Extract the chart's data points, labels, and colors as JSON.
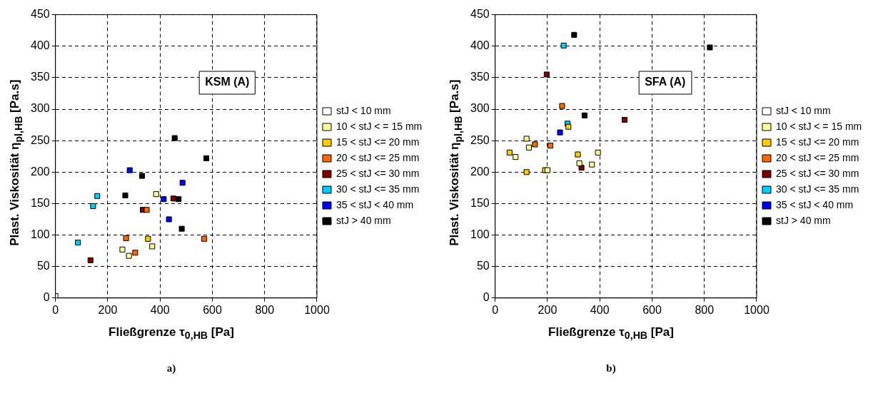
{
  "chart_data": [
    {
      "type": "scatter",
      "xlabel": "Fließgrenze τ$_{0,HB}$ [Pa]",
      "ylabel": "Plast. Viskosität η$_{pl,HB}$ [Pa.s]",
      "annotations": [
        "KSM (A)",
        "a)"
      ],
      "xlim": [
        0,
        1000
      ],
      "xticks": [
        0,
        200,
        400,
        600,
        800,
        1000
      ],
      "ylim": [
        0,
        450
      ],
      "yticks": [
        0,
        50,
        100,
        150,
        200,
        250,
        300,
        350,
        400,
        450
      ],
      "grid": true,
      "legend": "right",
      "marker": "square",
      "series": [
        {
          "name": "stJ < 10 mm",
          "color": "#ffffff",
          "x": [
            0
          ],
          "values": [
            3
          ]
        },
        {
          "name": "10 < stJ < = 15 mm",
          "color": "#ffff99",
          "x": [
            256,
            281,
            385,
            370
          ],
          "values": [
            77,
            67,
            165,
            82
          ]
        },
        {
          "name": "15 < stJ <= 20 mm",
          "color": "#ffcc00",
          "x": [
            354
          ],
          "values": [
            94
          ]
        },
        {
          "name": "20 < stJ <= 25 mm",
          "color": "#ff6600",
          "x": [
            270,
            305,
            349,
            569
          ],
          "values": [
            95,
            72,
            140,
            94
          ]
        },
        {
          "name": "25 < stJ <= 30 mm",
          "color": "#800000",
          "x": [
            134,
            334,
            451
          ],
          "values": [
            60,
            140,
            158
          ]
        },
        {
          "name": "30 < stJ <= 35 mm",
          "color": "#00ccff",
          "x": [
            86,
            144,
            160
          ],
          "values": [
            88,
            146,
            162
          ]
        },
        {
          "name": "35 < stJ < 40 mm",
          "color": "#0000ff",
          "x": [
            284,
            414,
            434,
            486
          ],
          "values": [
            203,
            157,
            125,
            183
          ]
        },
        {
          "name": "stJ > 40 mm",
          "color": "#000000",
          "x": [
            456,
            577,
            331,
            267,
            471,
            483
          ],
          "values": [
            254,
            222,
            194,
            163,
            157,
            110
          ]
        }
      ]
    },
    {
      "type": "scatter",
      "xlabel": "Fließgrenze τ$_{0,HB}$ [Pa]",
      "ylabel": "Plast. Viskosität η$_{pl,HB}$ [Pa.s]",
      "annotations": [
        "SFA (A)",
        "b)"
      ],
      "xlim": [
        0,
        1000
      ],
      "xticks": [
        0,
        200,
        400,
        600,
        800,
        1000
      ],
      "ylim": [
        0,
        450
      ],
      "yticks": [
        0,
        50,
        100,
        150,
        200,
        250,
        300,
        350,
        400,
        450
      ],
      "grid": true,
      "legend": "right",
      "marker": "square",
      "series": [
        {
          "name": "stJ < 10 mm",
          "color": "#ffffff"
        },
        {
          "name": "10 < stJ < = 15 mm",
          "color": "#ffff99",
          "x": [
            120,
            129,
            78,
            200,
            322,
            370,
            393
          ],
          "values": [
            253,
            239,
            224,
            203,
            214,
            212,
            231
          ]
        },
        {
          "name": "15 < stJ <= 20 mm",
          "color": "#ffcc00",
          "x": [
            280,
            55,
            120,
            191,
            316
          ],
          "values": [
            272,
            231,
            200,
            203,
            228
          ]
        },
        {
          "name": "20 < stJ <= 25 mm",
          "color": "#ff6600",
          "x": [
            256,
            152,
            211
          ],
          "values": [
            305,
            244,
            242
          ]
        },
        {
          "name": "25 < stJ <= 30 mm",
          "color": "#800000",
          "x": [
            197,
            495,
            330
          ],
          "values": [
            355,
            283,
            207
          ]
        },
        {
          "name": "30 < stJ <= 35 mm",
          "color": "#00ccff",
          "x": [
            262,
            277
          ],
          "values": [
            401,
            277
          ]
        },
        {
          "name": "35 < stJ < 40 mm",
          "color": "#0000ff",
          "x": [
            248
          ],
          "values": [
            263
          ]
        },
        {
          "name": "stJ > 40 mm",
          "color": "#000000",
          "x": [
            302,
            821,
            342
          ],
          "values": [
            418,
            398,
            290
          ]
        }
      ]
    }
  ]
}
